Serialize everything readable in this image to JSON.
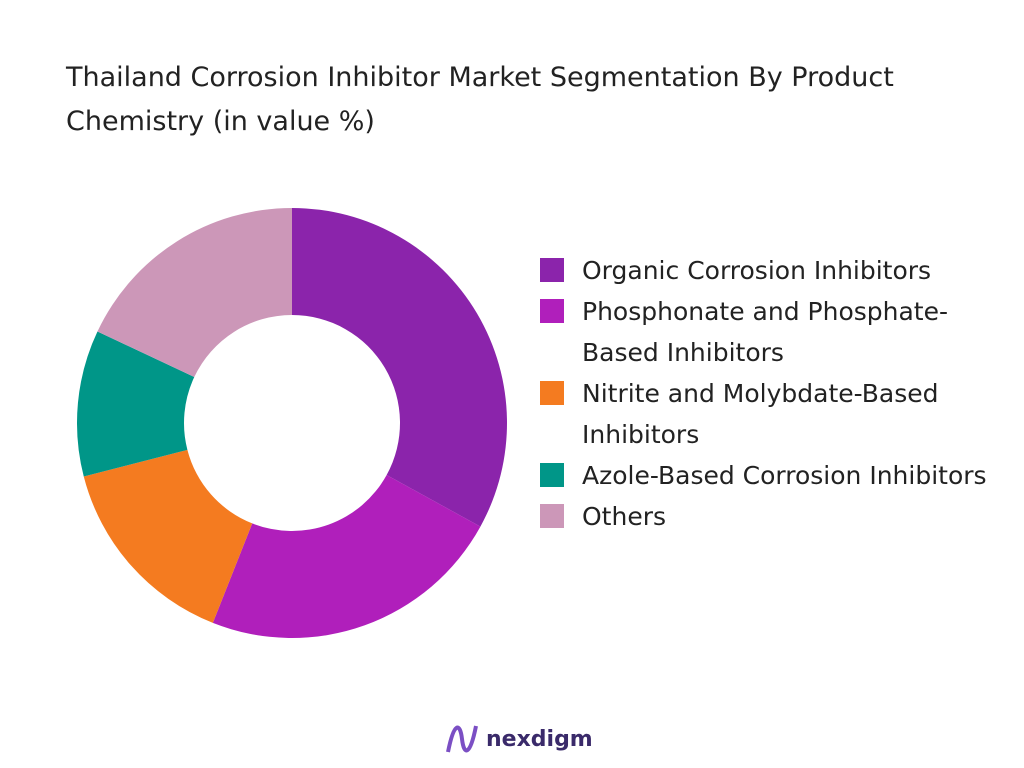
{
  "chart_data": {
    "type": "donut",
    "title": "Thailand Corrosion Inhibitor Market Segmentation By Product Chemistry (in value %)",
    "categories": [
      "Organic Corrosion Inhibitors",
      "Phosphonate and Phosphate-Based Inhibitors",
      "Nitrite and Molybdate-Based Inhibitors",
      "Azole-Based Corrosion Inhibitors",
      "Others"
    ],
    "values": [
      33,
      23,
      15,
      11,
      18
    ],
    "colors": [
      "#8b24ab",
      "#b01fbb",
      "#f47b20",
      "#009688",
      "#cc97b8"
    ],
    "legend": "right"
  },
  "brand": "nexdigm"
}
